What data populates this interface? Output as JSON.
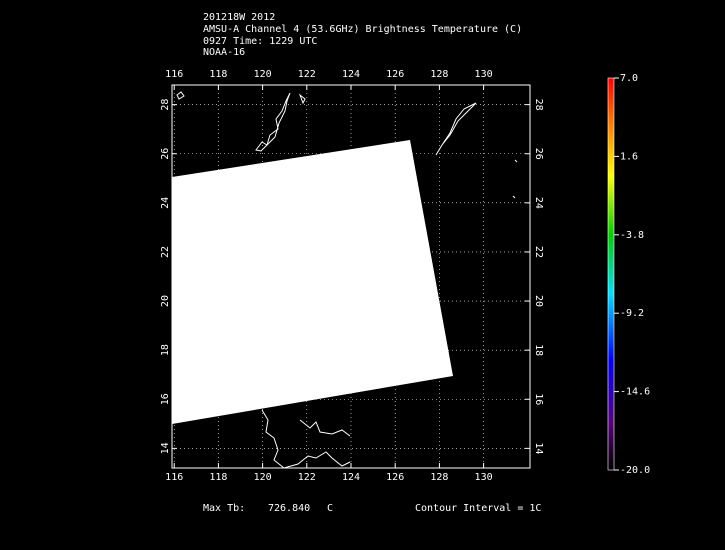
{
  "header": {
    "lines": [
      "201218W 2012",
      "AMSU-A Channel 4 (53.6GHz) Brightness Temperature (C)",
      "0927 Time: 1229 UTC",
      "NOAA-16"
    ]
  },
  "map": {
    "xlim": [
      115.9,
      132.1
    ],
    "ylim": [
      13.2,
      28.8
    ],
    "xticks": [
      116,
      118,
      120,
      122,
      124,
      126,
      128,
      130
    ],
    "yticks": [
      14,
      16,
      18,
      20,
      22,
      24,
      26,
      28
    ],
    "grid": true
  },
  "colorbar": {
    "lim": [
      -20,
      7
    ],
    "ticks": [
      {
        "value": 7,
        "label": "7.0"
      },
      {
        "value": 1.6,
        "label": "1.6"
      },
      {
        "value": -3.8,
        "label": "-3.8"
      },
      {
        "value": -9.2,
        "label": "-9.2"
      },
      {
        "value": -14.6,
        "label": "-14.6"
      },
      {
        "value": -20,
        "label": "-20.0"
      }
    ]
  },
  "footer": {
    "max_label": "Max Tb:",
    "max_value": "726.840",
    "max_unit": "C",
    "contour": "Contour Interval = 1C"
  }
}
